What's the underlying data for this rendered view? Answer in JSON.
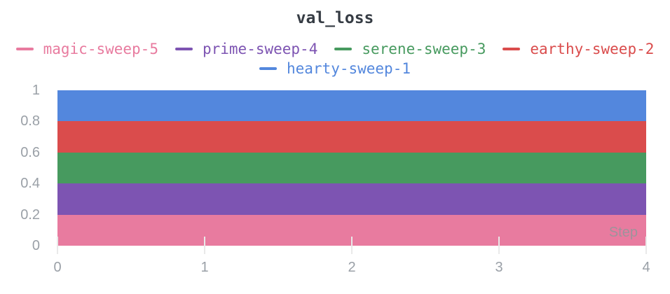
{
  "panel": {
    "title": "val_loss"
  },
  "colors": {
    "title": "#363C44",
    "axis": "#9AA0A7",
    "tickmark": "#E9E9E9",
    "step": "#9E939B"
  },
  "chart_data": {
    "type": "area",
    "title": "val_loss",
    "xlabel": "Step",
    "ylabel": "",
    "x": [
      0,
      1,
      2,
      3,
      4
    ],
    "xlim": [
      0,
      4
    ],
    "ylim": [
      0,
      1
    ],
    "grid": false,
    "legend_position": "top",
    "legend_rows": [
      4,
      1
    ],
    "fill": "to-zero-overlapping",
    "series": [
      {
        "name": "magic-sweep-5",
        "color": "#E87B9F",
        "values": [
          0.2,
          0.2,
          0.2,
          0.2,
          0.2
        ]
      },
      {
        "name": "prime-sweep-4",
        "color": "#7D54B2",
        "values": [
          0.4,
          0.4,
          0.4,
          0.4,
          0.4
        ]
      },
      {
        "name": "serene-sweep-3",
        "color": "#479A5F",
        "values": [
          0.6,
          0.6,
          0.6,
          0.6,
          0.6
        ]
      },
      {
        "name": "earthy-sweep-2",
        "color": "#DA4C4C",
        "values": [
          0.8,
          0.8,
          0.8,
          0.8,
          0.8
        ]
      },
      {
        "name": "hearty-sweep-1",
        "color": "#5387DD",
        "values": [
          1.0,
          1.0,
          1.0,
          1.0,
          1.0
        ]
      }
    ],
    "x_ticks": [
      {
        "value": 0,
        "label": "0"
      },
      {
        "value": 1,
        "label": "1"
      },
      {
        "value": 2,
        "label": "2"
      },
      {
        "value": 3,
        "label": "3"
      },
      {
        "value": 4,
        "label": "4"
      }
    ],
    "y_ticks": [
      {
        "value": 0,
        "label": "0"
      },
      {
        "value": 0.2,
        "label": "0.2"
      },
      {
        "value": 0.4,
        "label": "0.4"
      },
      {
        "value": 0.6,
        "label": "0.6"
      },
      {
        "value": 0.8,
        "label": "0.8"
      },
      {
        "value": 1,
        "label": "1"
      }
    ]
  }
}
